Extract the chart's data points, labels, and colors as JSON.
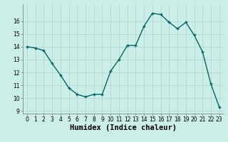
{
  "x": [
    0,
    1,
    2,
    3,
    4,
    5,
    6,
    7,
    8,
    9,
    10,
    11,
    12,
    13,
    14,
    15,
    16,
    17,
    18,
    19,
    20,
    21,
    22,
    23
  ],
  "y": [
    14.0,
    13.9,
    13.7,
    12.7,
    11.8,
    10.8,
    10.3,
    10.1,
    10.3,
    10.3,
    12.1,
    13.0,
    14.1,
    14.1,
    15.6,
    16.6,
    16.5,
    15.9,
    15.4,
    15.9,
    14.9,
    13.6,
    11.1,
    9.3
  ],
  "line_color": "#006666",
  "marker": "+",
  "marker_size": 3.5,
  "bg_color": "#cceee8",
  "grid_color": "#b0d4cc",
  "xlabel": "Humidex (Indice chaleur)",
  "ylim": [
    9,
    17
  ],
  "xlim_min": -0.5,
  "xlim_max": 23.5,
  "yticks": [
    9,
    10,
    11,
    12,
    13,
    14,
    15,
    16
  ],
  "xticks": [
    0,
    1,
    2,
    3,
    4,
    5,
    6,
    7,
    8,
    9,
    10,
    11,
    12,
    13,
    14,
    15,
    16,
    17,
    18,
    19,
    20,
    21,
    22,
    23
  ],
  "tick_label_fontsize": 5.5,
  "xlabel_fontsize": 7.5,
  "line_width": 1.0,
  "marker_color": "#006666"
}
